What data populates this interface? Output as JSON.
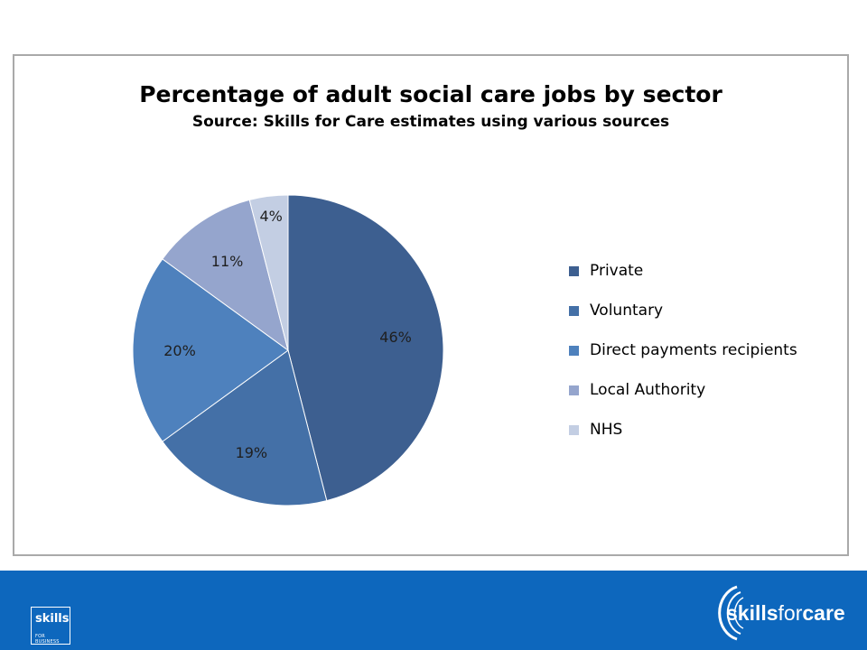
{
  "chart_data": {
    "type": "pie",
    "title": "Percentage of adult social care jobs by sector",
    "subtitle": "Source: Skills for Care estimates using various sources",
    "slices": [
      {
        "label": "Private",
        "value": 46,
        "display": "46%",
        "color": "#3d5f90"
      },
      {
        "label": "Voluntary",
        "value": 19,
        "display": "19%",
        "color": "#4470a7"
      },
      {
        "label": "Direct payments recipients",
        "value": 20,
        "display": "20%",
        "color": "#4e81bd"
      },
      {
        "label": "Local Authority",
        "value": 11,
        "display": "11%",
        "color": "#95a5cd"
      },
      {
        "label": "NHS",
        "value": 4,
        "display": "4%",
        "color": "#c3cee3"
      }
    ],
    "start_angle_deg": 0,
    "direction": "clockwise",
    "legend_position": "right"
  },
  "footer": {
    "background_color": "#0d67bd",
    "badge": {
      "main": "skills",
      "sub": "FOR BUSINESS"
    },
    "brand": {
      "part1": "skills",
      "part2": "for",
      "part3": "care"
    }
  }
}
